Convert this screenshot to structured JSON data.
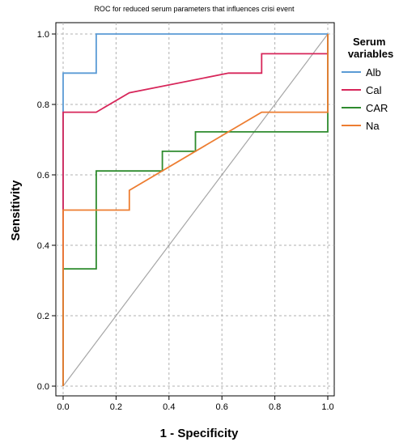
{
  "chart_data": {
    "type": "line",
    "title": "ROC for reduced serum parameters that influences crisi event",
    "xlabel": "1 - Specificity",
    "ylabel": "Sensitivity",
    "xlim": [
      0,
      1
    ],
    "ylim": [
      0,
      1
    ],
    "x_ticks": [
      "0.0",
      "0.2",
      "0.4",
      "0.6",
      "0.8",
      "1.0"
    ],
    "y_ticks": [
      "0.0",
      "0.2",
      "0.4",
      "0.6",
      "0.8",
      "1.0"
    ],
    "grid": true,
    "reference_line": "diagonal",
    "legend": {
      "title": "Serum variables",
      "position": "right"
    },
    "series": [
      {
        "name": "Alb",
        "color": "#5b9bd5",
        "points": [
          [
            0,
            0
          ],
          [
            0,
            0.889
          ],
          [
            0.125,
            0.889
          ],
          [
            0.125,
            1
          ],
          [
            1,
            1
          ]
        ]
      },
      {
        "name": "Cal",
        "color": "#d7265a",
        "points": [
          [
            0,
            0
          ],
          [
            0,
            0.778
          ],
          [
            0.125,
            0.778
          ],
          [
            0.25,
            0.833
          ],
          [
            0.625,
            0.889
          ],
          [
            0.75,
            0.889
          ],
          [
            0.75,
            0.944
          ],
          [
            1,
            0.944
          ],
          [
            1,
            1
          ]
        ]
      },
      {
        "name": "CAR",
        "color": "#2e8b2e",
        "points": [
          [
            0,
            0
          ],
          [
            0,
            0.333
          ],
          [
            0.125,
            0.333
          ],
          [
            0.125,
            0.611
          ],
          [
            0.375,
            0.611
          ],
          [
            0.375,
            0.667
          ],
          [
            0.5,
            0.667
          ],
          [
            0.5,
            0.722
          ],
          [
            1,
            0.722
          ],
          [
            1,
            1
          ]
        ]
      },
      {
        "name": "Na",
        "color": "#ed7d31",
        "points": [
          [
            0,
            0
          ],
          [
            0,
            0.5
          ],
          [
            0.25,
            0.5
          ],
          [
            0.25,
            0.556
          ],
          [
            0.75,
            0.778
          ],
          [
            1,
            0.778
          ],
          [
            1,
            1
          ]
        ]
      }
    ]
  }
}
